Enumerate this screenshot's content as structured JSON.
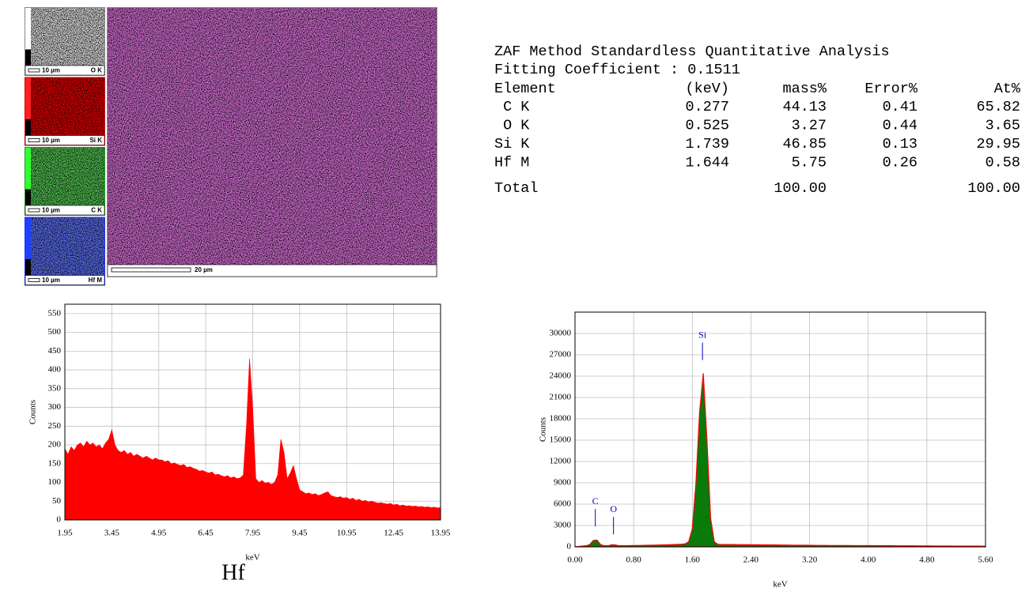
{
  "maps": {
    "tiles": [
      {
        "element": "O K",
        "scale": "10 µm",
        "color": "#d0d0d0",
        "bar": "#ffffff"
      },
      {
        "element": "Si K",
        "scale": "10 µm",
        "color": "#e00000",
        "bar": "#ff2020"
      },
      {
        "element": "C K",
        "scale": "10 µm",
        "color": "#1a9a1a",
        "bar": "#30ff30"
      },
      {
        "element": "Hf M",
        "scale": "10 µm",
        "color": "#2030ff",
        "bar": "#2040ff"
      }
    ],
    "main": {
      "scale": "20 µm",
      "color": "#c030c0"
    }
  },
  "table": {
    "title": "ZAF Method Standardless Quantitative Analysis",
    "fitting": "Fitting Coefficient : 0.1511",
    "header": [
      "Element",
      "(keV)",
      "mass%",
      "Error%",
      "At%"
    ],
    "rows": [
      [
        " C K",
        "0.277",
        "44.13",
        "0.41",
        "65.82"
      ],
      [
        " O K",
        "0.525",
        "3.27",
        "0.44",
        "3.65"
      ],
      [
        "Si K",
        "1.739",
        "46.85",
        "0.13",
        "29.95"
      ],
      [
        "Hf M",
        "1.644",
        "5.75",
        "0.26",
        "0.58"
      ]
    ],
    "total": {
      "label": "Total",
      "mass": "100.00",
      "at": "100.00"
    }
  },
  "chart_data": [
    {
      "type": "area",
      "x_label": "keV",
      "y_label": "Counts",
      "caption": "Hf",
      "fill_color": "#ff0000",
      "grid": true,
      "xlim": [
        1.95,
        13.95
      ],
      "ylim": [
        0,
        575
      ],
      "xticks": [
        1.95,
        3.45,
        4.95,
        6.45,
        7.95,
        9.45,
        10.95,
        12.45,
        13.95
      ],
      "yticks": [
        0,
        50,
        100,
        150,
        200,
        250,
        300,
        350,
        400,
        450,
        500,
        550
      ],
      "x": [
        1.95,
        2.05,
        2.15,
        2.25,
        2.35,
        2.45,
        2.55,
        2.65,
        2.75,
        2.85,
        2.95,
        3.05,
        3.15,
        3.25,
        3.35,
        3.45,
        3.55,
        3.65,
        3.75,
        3.85,
        3.95,
        4.05,
        4.15,
        4.25,
        4.35,
        4.45,
        4.55,
        4.65,
        4.75,
        4.85,
        4.95,
        5.05,
        5.15,
        5.25,
        5.35,
        5.45,
        5.55,
        5.65,
        5.75,
        5.85,
        5.95,
        6.05,
        6.15,
        6.25,
        6.35,
        6.45,
        6.55,
        6.65,
        6.75,
        6.85,
        6.95,
        7.05,
        7.15,
        7.25,
        7.35,
        7.45,
        7.55,
        7.65,
        7.75,
        7.85,
        7.95,
        8.05,
        8.15,
        8.25,
        8.35,
        8.45,
        8.55,
        8.65,
        8.75,
        8.85,
        8.95,
        9.05,
        9.15,
        9.25,
        9.35,
        9.45,
        9.55,
        9.65,
        9.75,
        9.85,
        9.95,
        10.05,
        10.15,
        10.25,
        10.35,
        10.45,
        10.55,
        10.65,
        10.75,
        10.85,
        10.95,
        11.05,
        11.15,
        11.25,
        11.35,
        11.45,
        11.55,
        11.65,
        11.75,
        11.85,
        11.95,
        12.05,
        12.15,
        12.25,
        12.35,
        12.45,
        12.55,
        12.65,
        12.75,
        12.85,
        12.95,
        13.05,
        13.15,
        13.25,
        13.35,
        13.45,
        13.55,
        13.65,
        13.75,
        13.85,
        13.95
      ],
      "values": [
        190,
        175,
        195,
        185,
        200,
        205,
        195,
        210,
        200,
        205,
        195,
        200,
        190,
        205,
        215,
        240,
        200,
        185,
        180,
        185,
        175,
        180,
        170,
        175,
        170,
        165,
        170,
        165,
        160,
        165,
        160,
        160,
        155,
        158,
        150,
        152,
        148,
        145,
        148,
        140,
        142,
        138,
        135,
        130,
        132,
        128,
        125,
        128,
        120,
        122,
        118,
        115,
        118,
        112,
        115,
        110,
        112,
        120,
        250,
        430,
        300,
        110,
        100,
        105,
        98,
        100,
        95,
        100,
        120,
        215,
        180,
        110,
        125,
        145,
        110,
        80,
        75,
        70,
        72,
        68,
        70,
        65,
        68,
        72,
        75,
        65,
        62,
        60,
        62,
        58,
        60,
        55,
        58,
        52,
        55,
        50,
        52,
        48,
        50,
        47,
        45,
        46,
        44,
        42,
        44,
        40,
        42,
        38,
        40,
        37,
        38,
        36,
        37,
        35,
        36,
        34,
        35,
        33,
        34,
        32,
        33
      ]
    },
    {
      "type": "area",
      "x_label": "keV",
      "y_label": "Counts",
      "fill_color": "#0a7a0a",
      "line_color": "#ff0000",
      "annotation_color": "#0000cc",
      "grid": true,
      "xlim": [
        0,
        5.6
      ],
      "ylim": [
        0,
        33000
      ],
      "xticks": [
        {
          "value": 0,
          "label": "0.00"
        },
        {
          "value": 0.8,
          "label": "0.80"
        },
        {
          "value": 1.6,
          "label": "1.60"
        },
        {
          "value": 2.4,
          "label": "2.40"
        },
        {
          "value": 3.2,
          "label": "3.20"
        },
        {
          "value": 4,
          "label": "4.00"
        },
        {
          "value": 4.8,
          "label": "4.80"
        },
        {
          "value": 5.6,
          "label": "5.60"
        }
      ],
      "yticks": [
        0,
        3000,
        6000,
        9000,
        12000,
        15000,
        18000,
        21000,
        24000,
        27000,
        30000
      ],
      "annotations": [
        {
          "text": "C",
          "x": 0.277,
          "y": 6300
        },
        {
          "text": "O",
          "x": 0.525,
          "y": 5200
        },
        {
          "text": "Si",
          "x": 1.739,
          "y": 29700
        }
      ],
      "x": [
        0,
        0.05,
        0.1,
        0.15,
        0.2,
        0.25,
        0.3,
        0.35,
        0.4,
        0.45,
        0.5,
        0.55,
        0.6,
        0.65,
        0.7,
        0.75,
        0.8,
        0.85,
        0.9,
        0.95,
        1.0,
        1.05,
        1.1,
        1.15,
        1.2,
        1.25,
        1.3,
        1.35,
        1.4,
        1.45,
        1.5,
        1.55,
        1.6,
        1.65,
        1.7,
        1.75,
        1.8,
        1.85,
        1.9,
        1.95,
        2.0,
        2.1,
        2.2,
        2.3,
        2.4,
        2.5,
        2.6,
        2.7,
        2.8,
        2.9,
        3.0,
        3.1,
        3.2,
        3.3,
        3.4,
        3.5,
        3.6,
        3.7,
        3.8,
        3.9,
        4.0,
        4.1,
        4.2,
        4.3,
        4.4,
        4.5,
        4.6,
        4.7,
        4.8,
        4.9,
        5.0,
        5.1,
        5.2,
        5.3,
        5.4,
        5.5,
        5.6
      ],
      "values": [
        0,
        50,
        100,
        150,
        300,
        900,
        950,
        300,
        150,
        150,
        280,
        260,
        150,
        150,
        160,
        170,
        180,
        190,
        200,
        210,
        220,
        230,
        240,
        250,
        260,
        280,
        300,
        320,
        340,
        360,
        400,
        700,
        2500,
        9000,
        19000,
        24400,
        15000,
        4000,
        700,
        350,
        330,
        320,
        310,
        300,
        290,
        280,
        270,
        260,
        250,
        240,
        230,
        220,
        210,
        200,
        195,
        190,
        185,
        180,
        175,
        170,
        165,
        160,
        155,
        150,
        145,
        140,
        135,
        130,
        125,
        120,
        115,
        110,
        105,
        100,
        100,
        95,
        90
      ]
    }
  ]
}
